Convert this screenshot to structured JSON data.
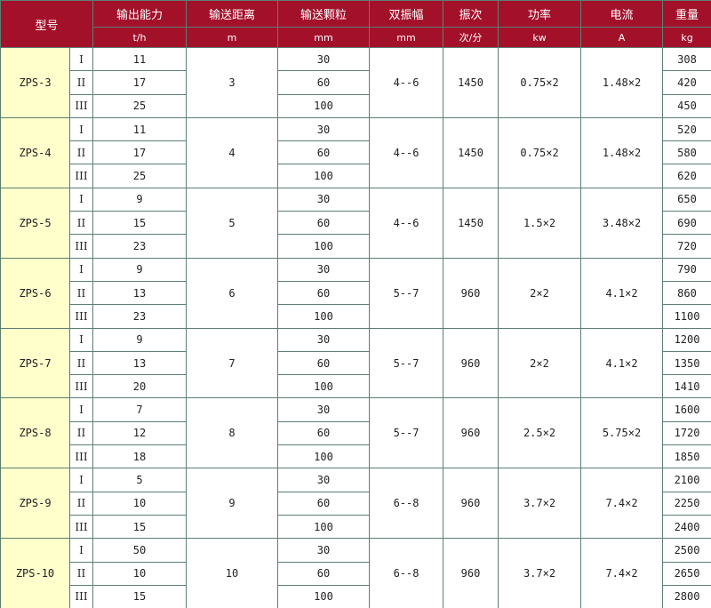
{
  "header": {
    "titles": [
      "型号",
      "输出能力",
      "输送距离",
      "输送颗粒",
      "双振幅",
      "振次",
      "功率",
      "电流",
      "重量"
    ],
    "units": [
      "t/h",
      "m",
      "mm",
      "mm",
      "次/分",
      "kw",
      "A",
      "kg"
    ]
  },
  "groups": [
    {
      "model": "ZPS-3",
      "distance": 3,
      "amplitude": "4--6",
      "frequency": 1450,
      "power": "0.75×2",
      "current": "1.48×2",
      "rows": [
        {
          "grade": "I",
          "capacity": 11,
          "particle": 30,
          "weight": 308
        },
        {
          "grade": "II",
          "capacity": 17,
          "particle": 60,
          "weight": 420
        },
        {
          "grade": "III",
          "capacity": 25,
          "particle": 100,
          "weight": 450
        }
      ]
    },
    {
      "model": "ZPS-4",
      "distance": 4,
      "amplitude": "4--6",
      "frequency": 1450,
      "power": "0.75×2",
      "current": "1.48×2",
      "rows": [
        {
          "grade": "I",
          "capacity": 11,
          "particle": 30,
          "weight": 520
        },
        {
          "grade": "II",
          "capacity": 17,
          "particle": 60,
          "weight": 580
        },
        {
          "grade": "III",
          "capacity": 25,
          "particle": 100,
          "weight": 620
        }
      ]
    },
    {
      "model": "ZPS-5",
      "distance": 5,
      "amplitude": "4--6",
      "frequency": 1450,
      "power": "1.5×2",
      "current": "3.48×2",
      "rows": [
        {
          "grade": "I",
          "capacity": 9,
          "particle": 30,
          "weight": 650
        },
        {
          "grade": "II",
          "capacity": 15,
          "particle": 60,
          "weight": 690
        },
        {
          "grade": "III",
          "capacity": 23,
          "particle": 100,
          "weight": 720
        }
      ]
    },
    {
      "model": "ZPS-6",
      "distance": 6,
      "amplitude": "5--7",
      "frequency": 960,
      "power": "2×2",
      "current": "4.1×2",
      "rows": [
        {
          "grade": "I",
          "capacity": 9,
          "particle": 30,
          "weight": 790
        },
        {
          "grade": "II",
          "capacity": 13,
          "particle": 60,
          "weight": 860
        },
        {
          "grade": "III",
          "capacity": 23,
          "particle": 100,
          "weight": 1100
        }
      ]
    },
    {
      "model": "ZPS-7",
      "distance": 7,
      "amplitude": "5--7",
      "frequency": 960,
      "power": "2×2",
      "current": "4.1×2",
      "rows": [
        {
          "grade": "I",
          "capacity": 9,
          "particle": 30,
          "weight": 1200
        },
        {
          "grade": "II",
          "capacity": 13,
          "particle": 60,
          "weight": 1350
        },
        {
          "grade": "III",
          "capacity": 20,
          "particle": 100,
          "weight": 1410
        }
      ]
    },
    {
      "model": "ZPS-8",
      "distance": 8,
      "amplitude": "5--7",
      "frequency": 960,
      "power": "2.5×2",
      "current": "5.75×2",
      "rows": [
        {
          "grade": "I",
          "capacity": 7,
          "particle": 30,
          "weight": 1600
        },
        {
          "grade": "II",
          "capacity": 12,
          "particle": 60,
          "weight": 1720
        },
        {
          "grade": "III",
          "capacity": 18,
          "particle": 100,
          "weight": 1850
        }
      ]
    },
    {
      "model": "ZPS-9",
      "distance": 9,
      "amplitude": "6--8",
      "frequency": 960,
      "power": "3.7×2",
      "current": "7.4×2",
      "rows": [
        {
          "grade": "I",
          "capacity": 5,
          "particle": 30,
          "weight": 2100
        },
        {
          "grade": "II",
          "capacity": 10,
          "particle": 60,
          "weight": 2250
        },
        {
          "grade": "III",
          "capacity": 15,
          "particle": 100,
          "weight": 2400
        }
      ]
    },
    {
      "model": "ZPS-10",
      "distance": 10,
      "amplitude": "6--8",
      "frequency": 960,
      "power": "3.7×2",
      "current": "7.4×2",
      "rows": [
        {
          "grade": "I",
          "capacity": 50,
          "particle": 30,
          "weight": 2500
        },
        {
          "grade": "II",
          "capacity": 10,
          "particle": 60,
          "weight": 2650
        },
        {
          "grade": "III",
          "capacity": 15,
          "particle": 100,
          "weight": 2800
        }
      ]
    }
  ]
}
